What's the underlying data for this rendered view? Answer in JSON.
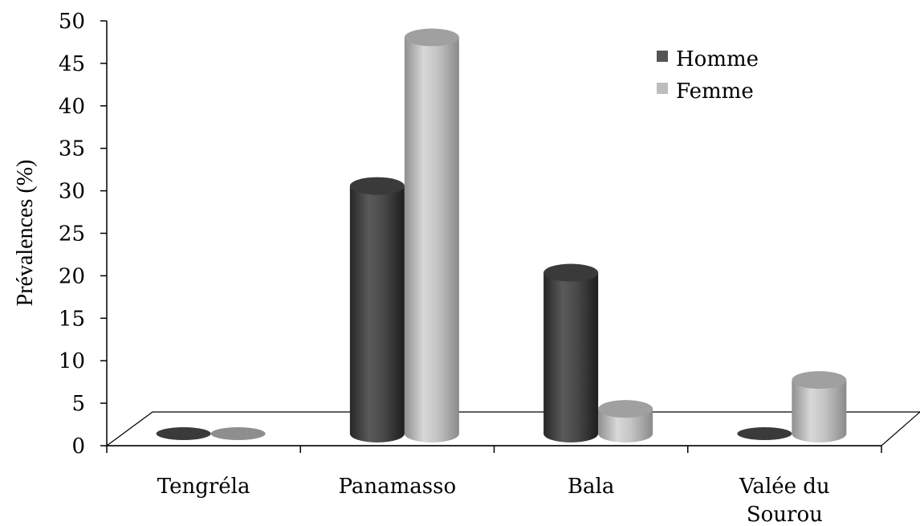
{
  "chart_data": {
    "type": "bar",
    "title": "",
    "xlabel": "",
    "ylabel": "Prévalences (%)",
    "categories": [
      "Tengréla",
      "Panamasso",
      "Bala",
      "Valée du Sourou"
    ],
    "category_lines": [
      [
        "Tengréla"
      ],
      [
        "Panamasso"
      ],
      [
        "Bala"
      ],
      [
        "Valée du",
        "Sourou"
      ]
    ],
    "series": [
      {
        "name": "Homme",
        "values": [
          0,
          30,
          19.5,
          0
        ]
      },
      {
        "name": "Femme",
        "values": [
          0,
          48,
          3,
          6.5
        ]
      }
    ],
    "ylim": [
      0,
      50
    ],
    "yticks": [
      "0",
      "5",
      "10",
      "15",
      "20",
      "25",
      "30",
      "35",
      "40",
      "45",
      "50"
    ],
    "legend_position": "top-right",
    "grid": false,
    "style": "3d-cylinder"
  },
  "colors": {
    "homme": "#555555",
    "homme_dark": "#2f2f2f",
    "homme_light": "#6e6e6e",
    "femme": "#bdbdbd",
    "femme_dark": "#8a8a8a",
    "femme_light": "#e2e2e2"
  }
}
